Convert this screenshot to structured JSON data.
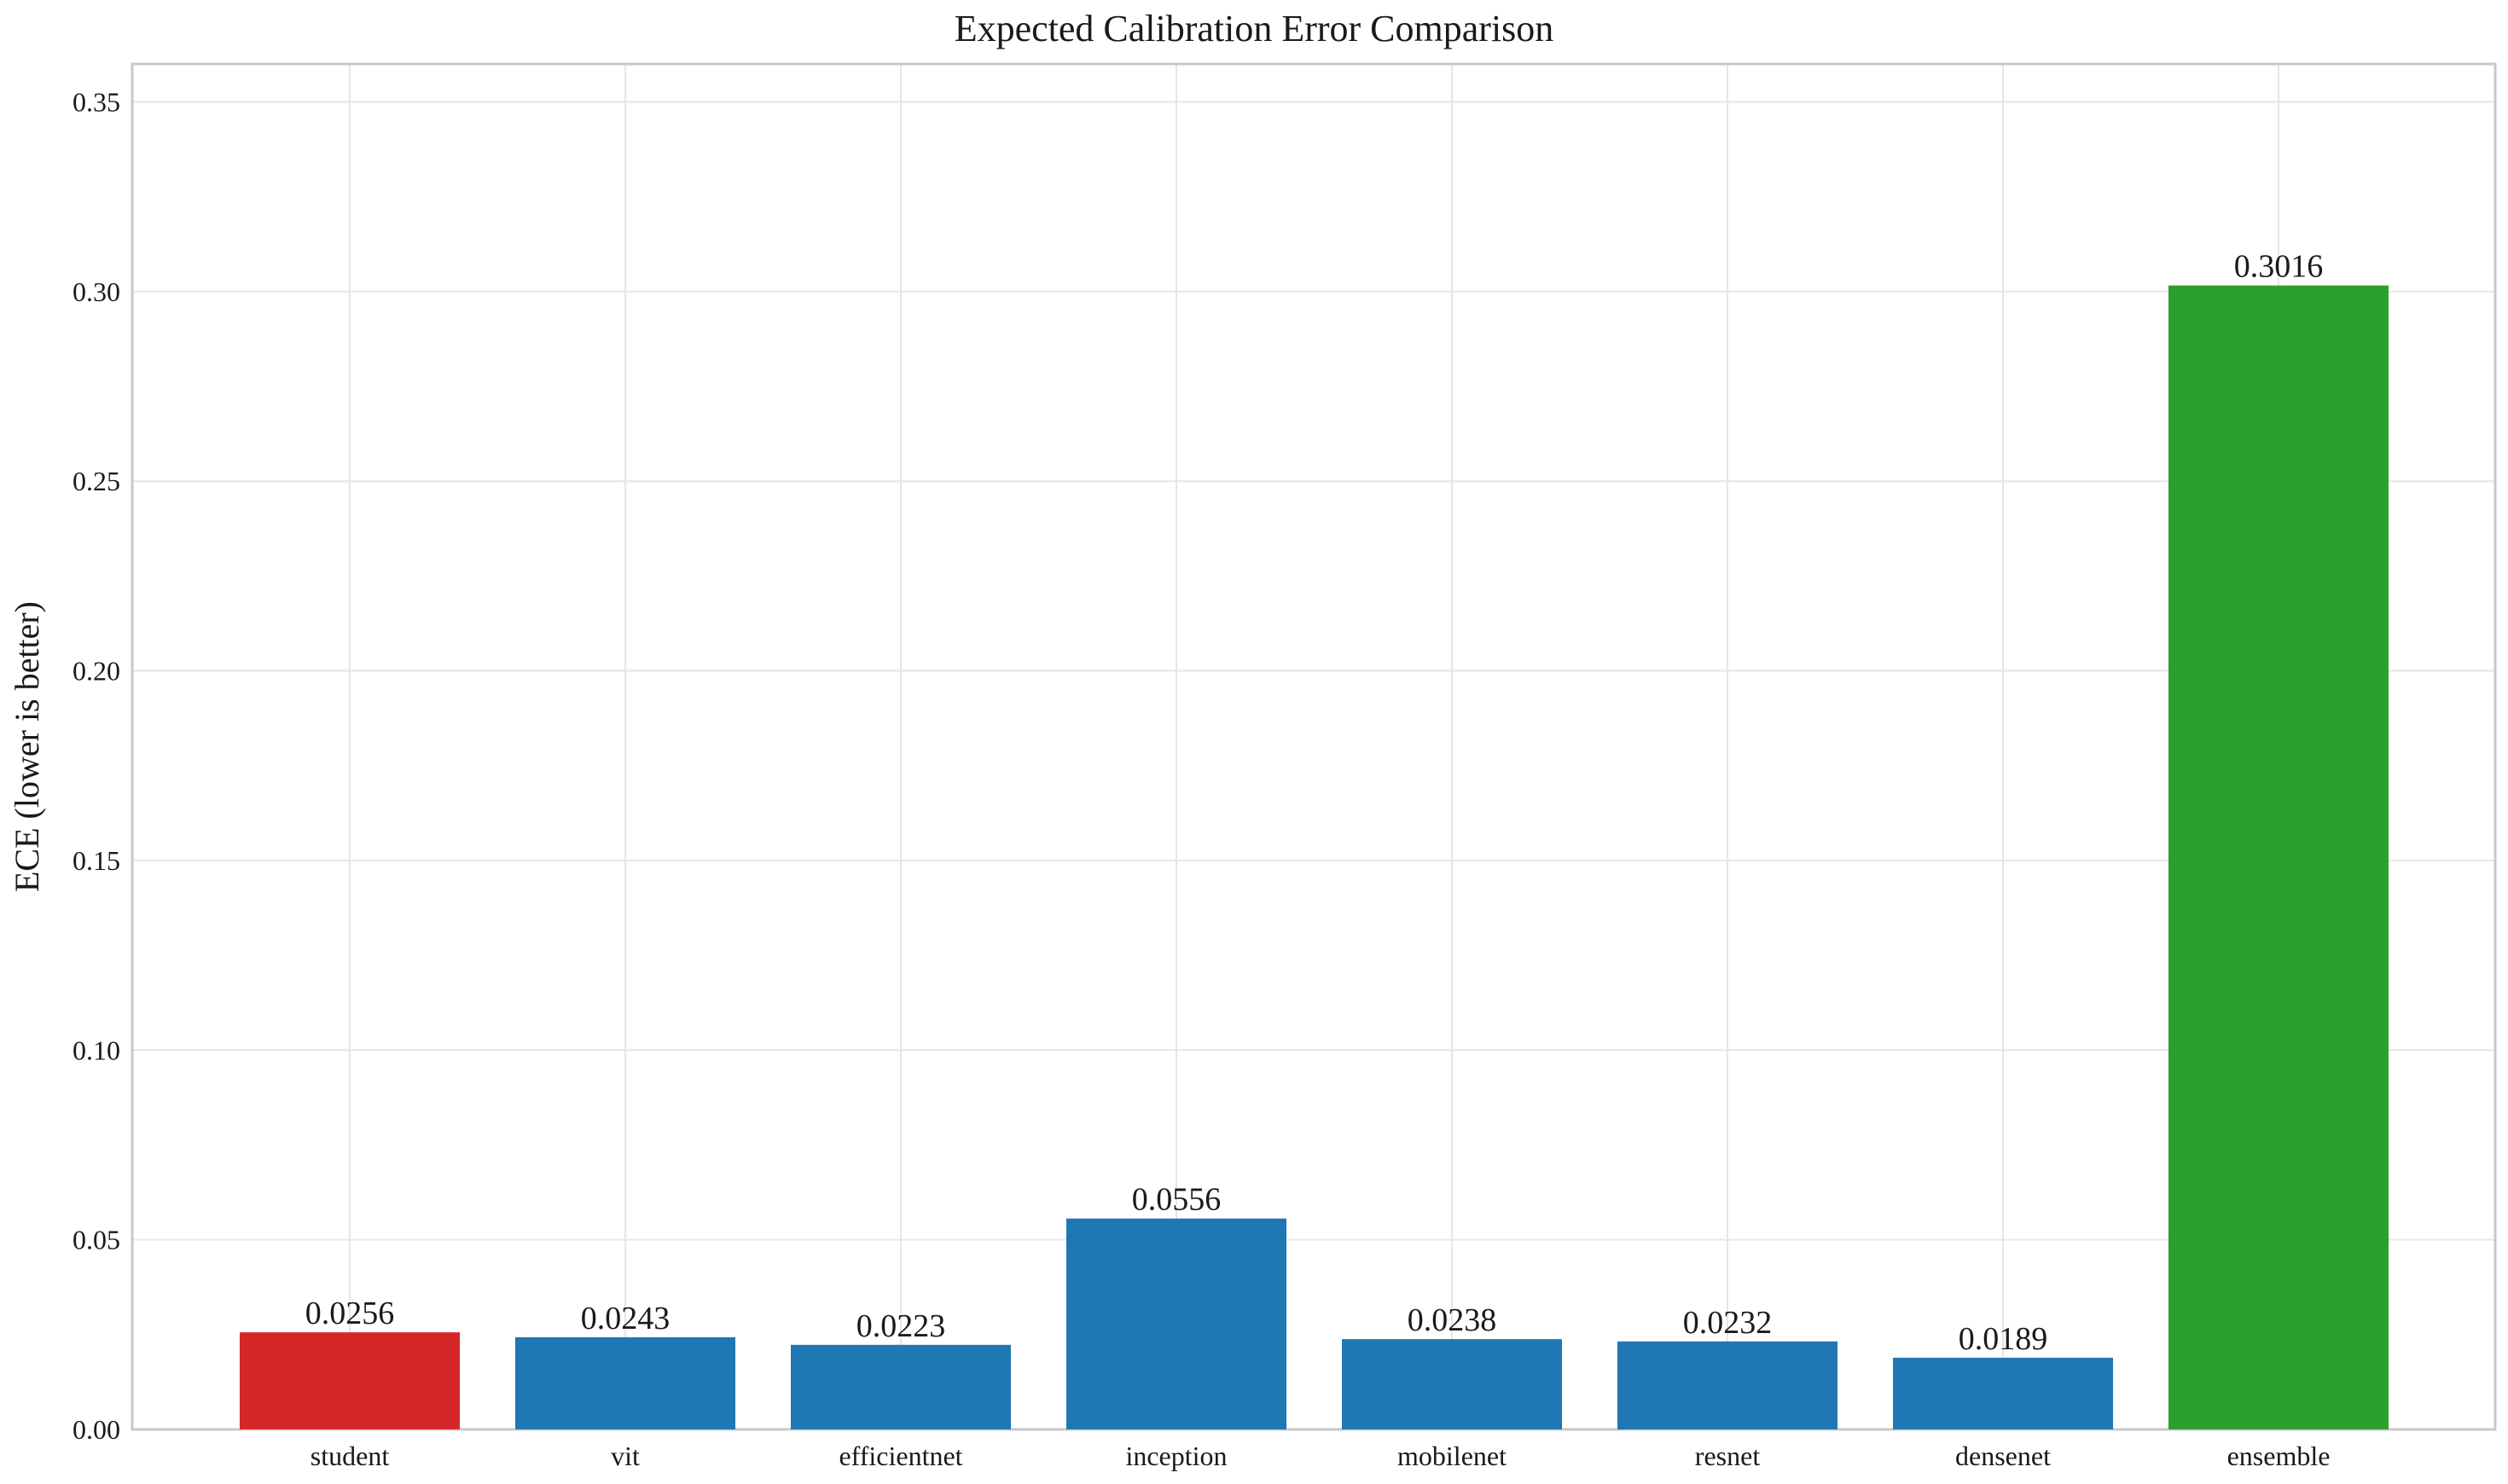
{
  "chart_data": {
    "type": "bar",
    "title": "Expected Calibration Error Comparison",
    "xlabel": "",
    "ylabel": "ECE (lower is better)",
    "ylim": [
      0,
      0.36
    ],
    "yticks": [
      0.0,
      0.05,
      0.1,
      0.15,
      0.2,
      0.25,
      0.3,
      0.35
    ],
    "ytick_labels": [
      "0.00",
      "0.05",
      "0.10",
      "0.15",
      "0.20",
      "0.25",
      "0.30",
      "0.35"
    ],
    "grid": true,
    "categories": [
      "student",
      "vit",
      "efficientnet",
      "inception",
      "mobilenet",
      "resnet",
      "densenet",
      "ensemble"
    ],
    "values": [
      0.0256,
      0.0243,
      0.0223,
      0.0556,
      0.0238,
      0.0232,
      0.0189,
      0.3016
    ],
    "value_labels": [
      "0.0256",
      "0.0243",
      "0.0223",
      "0.0556",
      "0.0238",
      "0.0232",
      "0.0189",
      "0.3016"
    ],
    "bar_colors": [
      "#d62728",
      "#1f77b4",
      "#1f77b4",
      "#1f77b4",
      "#1f77b4",
      "#1f77b4",
      "#1f77b4",
      "#2ca02c"
    ]
  }
}
